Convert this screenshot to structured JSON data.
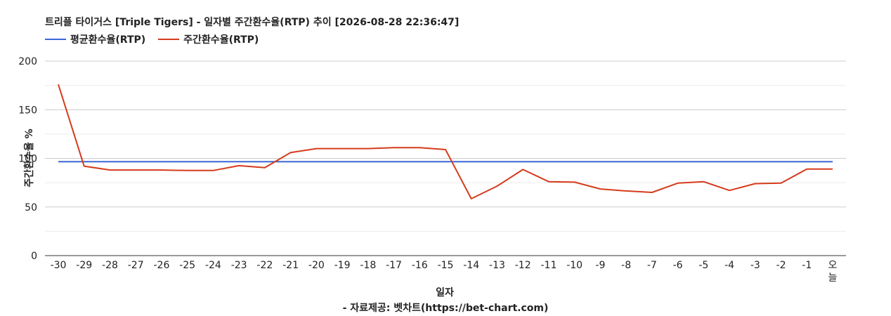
{
  "chart_data": {
    "type": "line",
    "title": "트리플 타이거스 [Triple Tigers] - 일자별 주간환수율(RTP) 추이 [2026-08-28 22:36:47]",
    "xlabel": "일자",
    "ylabel": "주간환수율 %",
    "categories": [
      "-30",
      "-29",
      "-28",
      "-27",
      "-26",
      "-25",
      "-24",
      "-23",
      "-22",
      "-21",
      "-20",
      "-19",
      "-18",
      "-17",
      "-16",
      "-15",
      "-14",
      "-13",
      "-12",
      "-11",
      "-10",
      "-9",
      "-8",
      "-7",
      "-6",
      "-5",
      "-4",
      "-3",
      "-2",
      "-1",
      "오늘"
    ],
    "ylim": [
      0,
      200
    ],
    "yticks": [
      0,
      50,
      100,
      150,
      200
    ],
    "grid": true,
    "legend_position": "top-left",
    "series": [
      {
        "name": "평균환수율(RTP)",
        "color": "#3b67d6",
        "values": [
          96.5,
          96.5,
          96.5,
          96.5,
          96.5,
          96.5,
          96.5,
          96.5,
          96.5,
          96.5,
          96.5,
          96.5,
          96.5,
          96.5,
          96.5,
          96.5,
          96.5,
          96.5,
          96.5,
          96.5,
          96.5,
          96.5,
          96.5,
          96.5,
          96.5,
          96.5,
          96.5,
          96.5,
          96.5,
          96.5,
          96.5
        ]
      },
      {
        "name": "주간환수율(RTP)",
        "color": "#d63b1c",
        "values": [
          176,
          92,
          88,
          88,
          88,
          87.5,
          87.5,
          92.5,
          90.5,
          106,
          110,
          110,
          110,
          111,
          111,
          109,
          58.5,
          71.5,
          88.5,
          76,
          75.5,
          68.5,
          66.5,
          65,
          74.5,
          76,
          67,
          74,
          74.5,
          89,
          89
        ]
      }
    ]
  },
  "footnote": "- 자료제공: 벳차트(https://bet-chart.com)"
}
